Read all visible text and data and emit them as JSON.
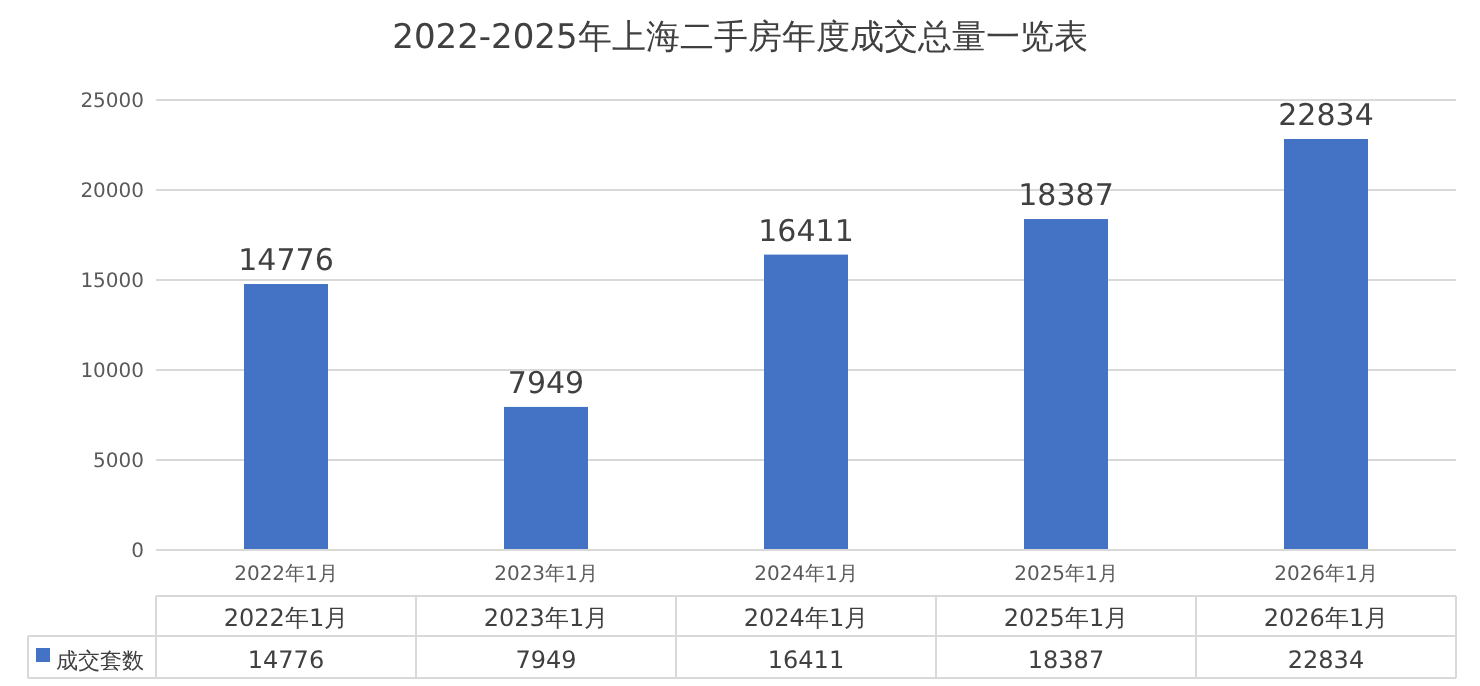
{
  "chart_data": {
    "type": "bar",
    "title": "2022-2025年上海二手房年度成交总量一览表",
    "categories": [
      "2022年1月",
      "2023年1月",
      "2024年1月",
      "2025年1月",
      "2026年1月"
    ],
    "series": [
      {
        "name": "成交套数",
        "color": "#4472c4",
        "values": [
          14776,
          7949,
          16411,
          18387,
          22834
        ],
        "value_labels": [
          "14776",
          "7949",
          "16411",
          "18387",
          "22834"
        ]
      }
    ],
    "annotations": [
      "14776",
      "7949",
      "16411",
      "18387",
      "22834"
    ],
    "ylim": [
      0,
      25000
    ],
    "yticks": [
      0,
      5000,
      10000,
      15000,
      20000,
      25000
    ],
    "grid": "y",
    "data_labels": true,
    "legend": "bottom"
  }
}
